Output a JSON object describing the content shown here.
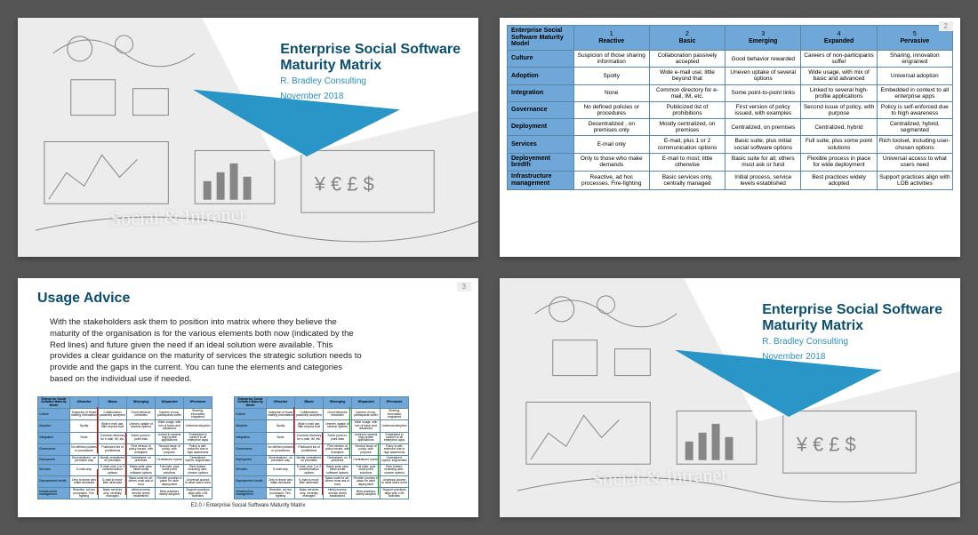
{
  "title_slide": {
    "title_line1": "Enterprise Social Software",
    "title_line2": "Maturity Matrix",
    "subtitle": "R. Bradley Consulting",
    "date": "November 2018",
    "watermark": "Social  & Intranet"
  },
  "matrix": {
    "corner_label": "Enterprise Social Software Maturity Model",
    "columns": [
      {
        "num": "1",
        "name": "Reactive"
      },
      {
        "num": "2",
        "name": "Basic"
      },
      {
        "num": "3",
        "name": "Emerging"
      },
      {
        "num": "4",
        "name": "Expanded"
      },
      {
        "num": "5",
        "name": "Pervasive"
      }
    ],
    "rows": [
      {
        "head": "Culture",
        "cells": [
          "Suspicion of those sharing information",
          "Collaboration passively accepted",
          "Good behavior rewarded",
          "Careers of non-participants  suffer",
          "Sharing, innovation engrained"
        ]
      },
      {
        "head": "Adoption",
        "cells": [
          "Spotty",
          "Wide e-mail use; little beyond that",
          "Uneven uptake of  several options",
          "Wide usage, with mix of basic and advanced",
          "Universal adoption"
        ]
      },
      {
        "head": "Integration",
        "cells": [
          "None",
          "Common directory for e-mail, IM, etc.",
          "Some point-to-point links",
          "Linked to several high-profile applications",
          "Embedded in context to all enterprise apps"
        ]
      },
      {
        "head": "Governance",
        "cells": [
          "No defined policies or procedures",
          "Publicized list of prohibitions",
          "First version of policy issued, with examples",
          "Second issue of policy, with  purpose",
          "Policy  is self-enforced due to high awareness"
        ]
      },
      {
        "head": "Deployment",
        "cells": [
          "Decentralized , on premises only",
          "Mostly centralized, on premises",
          "Centralized,  on premises",
          "Centralized, hybrid",
          "Centralized, hybrid, segmented"
        ]
      },
      {
        "head": "Services",
        "cells": [
          "E-mail only",
          "E-mail, plus 1 or 2 communication options",
          "Basic suite, plus initial social software options",
          "Full suite, plus some point solutions",
          "Rich toolset, including user-chosen options"
        ]
      },
      {
        "head": "Deployement bredth",
        "cells": [
          "Only to those who make demands",
          "E-mail to most; little otherwise",
          "Basic suite for all; others must ask or fund",
          "Flexible process in place for wide deployment",
          "Universal access to what users need"
        ]
      },
      {
        "head": "Infrastructure management",
        "cells": [
          "Reactive, ad hoc processes. Fire-fighting",
          "Basic services only, centrally managed",
          "Initial process, service levels established",
          "Best practices widely adopted",
          "Support practices align with LOB activities"
        ]
      }
    ]
  },
  "advice": {
    "heading": "Usage Advice",
    "body": "With the stakeholders ask them to position into matrix where they believe the maturity of the organisation is for the various elements both now (indicated by the Red lines) and future given the need if an ideal solution were available.  This provides a clear guidance on the maturity of services the strategic solution needs to provide and the gaps in the current. You can tune the elements and categories based on the individual use if needed.",
    "caption": "E2.0 / Enterprise Social Software Maturity Matrix"
  },
  "pagenums": {
    "slide2": "2",
    "slide3": "3"
  },
  "colors": {
    "header_cell": "#6fa8d8",
    "border": "#5b87a6",
    "title": "#0b4e6f",
    "accent": "#2b8fbd",
    "wedge": "#1f8fc4",
    "sketch_bg": "#ececec"
  }
}
